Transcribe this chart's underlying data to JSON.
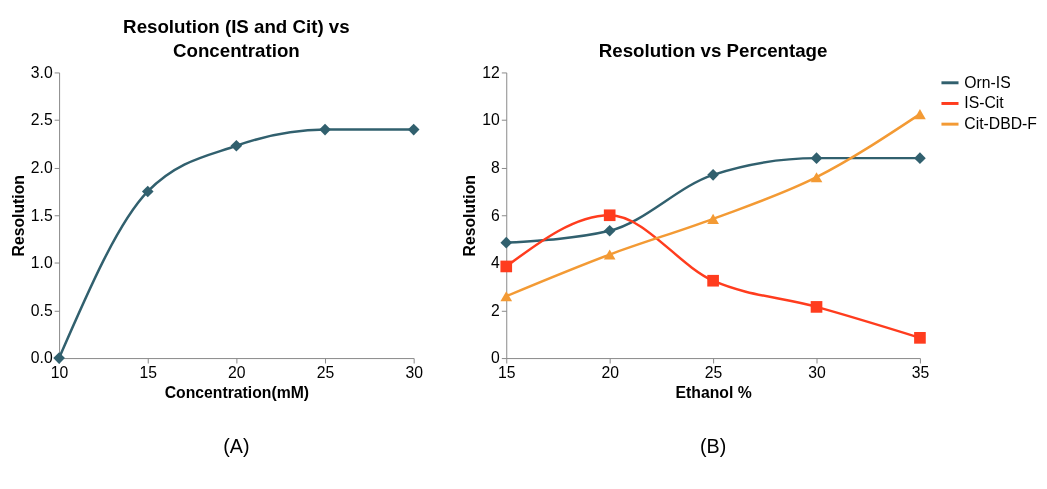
{
  "chart_data": [
    {
      "type": "line",
      "title": "Resolution (IS and Cit) vs Concentration",
      "xlabel": "Concentration(mM)",
      "ylabel": "Resolution",
      "annotations": [
        "(A)"
      ],
      "x": [
        10,
        15,
        20,
        25,
        30
      ],
      "series": [
        {
          "color": "#31606e",
          "values": [
            0,
            1.75,
            2.23,
            2.4,
            2.4
          ]
        }
      ],
      "xlim": [
        10,
        30
      ],
      "xticks": [
        10,
        15,
        20,
        25,
        30
      ],
      "ylim": [
        0,
        3
      ],
      "yticks": [
        {
          "value": 0,
          "label": "0.0"
        },
        {
          "value": 0.5,
          "label": "0.5"
        },
        {
          "value": 1,
          "label": "1.0"
        },
        {
          "value": 1.5,
          "label": "1.5"
        },
        {
          "value": 2,
          "label": "2.0"
        },
        {
          "value": 2.5,
          "label": "2.5"
        },
        {
          "value": 3,
          "label": "3.0"
        }
      ],
      "grid": false,
      "legend": false,
      "marker": "diamond"
    },
    {
      "type": "line",
      "title": "Resolution vs Percentage",
      "xlabel": "Ethanol %",
      "ylabel": "Resolution",
      "annotations": [
        "(B)"
      ],
      "x": [
        15,
        20,
        25,
        30,
        35
      ],
      "series": [
        {
          "name": "Orn-IS",
          "color": "#31606e",
          "marker": "diamond",
          "values": [
            4.85,
            5.35,
            7.7,
            8.4,
            8.4
          ]
        },
        {
          "name": "IS-Cit",
          "color": "#ff3c1e",
          "marker": "square",
          "values": [
            3.85,
            6.0,
            3.25,
            2.15,
            0.85
          ]
        },
        {
          "name": "Cit-DBD-F",
          "color": "#f39a34",
          "marker": "triangle",
          "values": [
            2.6,
            4.35,
            5.85,
            7.6,
            10.25
          ]
        }
      ],
      "xlim": [
        15,
        35
      ],
      "xticks": [
        15,
        20,
        25,
        30,
        35
      ],
      "ylim": [
        0,
        12
      ],
      "yticks": [
        0,
        2,
        4,
        6,
        8,
        10,
        12
      ],
      "grid": false,
      "legend": "right"
    }
  ]
}
